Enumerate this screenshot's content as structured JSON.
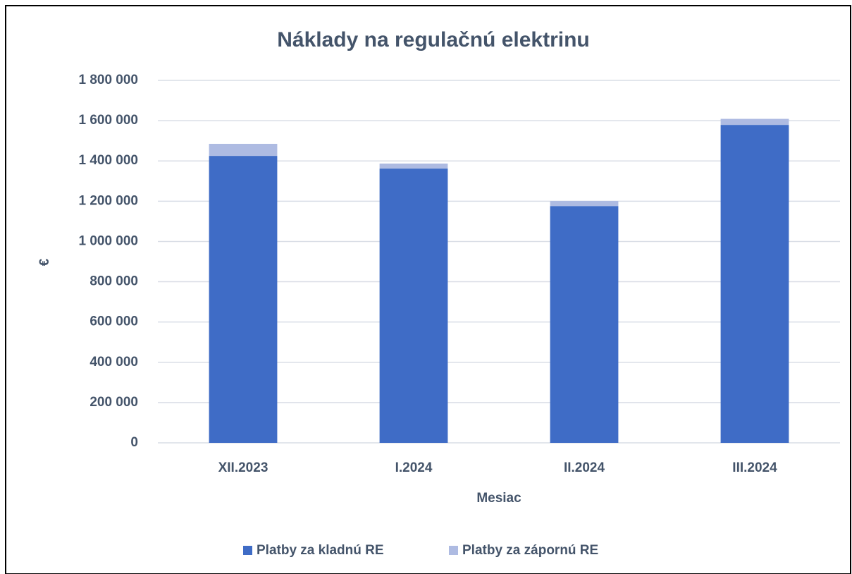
{
  "chart_data": {
    "type": "stacked_bar",
    "title": "Náklady na regulačnú elektrinu",
    "x_label": "Mesiac",
    "y_label": "€",
    "categories": [
      "XII.2023",
      "I.2024",
      "II.2024",
      "III.2024"
    ],
    "series": [
      {
        "name": "Platby za kladnú RE",
        "color": "#3f6cc6",
        "values": [
          1425000,
          1362000,
          1176000,
          1579000
        ]
      },
      {
        "name": "Platby za zápornú RE",
        "color": "#aebbe2",
        "values": [
          60000,
          25000,
          25000,
          30000
        ]
      }
    ],
    "ylim": [
      0,
      1800000
    ],
    "yticks": [
      0,
      {
        "value": 200000,
        "label": "200 000"
      },
      {
        "value": 400000,
        "label": "400 000"
      },
      {
        "value": 600000,
        "label": "600 000"
      },
      {
        "value": 800000,
        "label": "800 000"
      },
      {
        "value": 1000000,
        "label": "1 000 000"
      },
      {
        "value": 1200000,
        "label": "1 200 000"
      },
      {
        "value": 1400000,
        "label": "1 400 000"
      },
      {
        "value": 1600000,
        "label": "1 600 000"
      },
      {
        "value": 1800000,
        "label": "1 800 000"
      }
    ],
    "grid": true,
    "legend": "bottom"
  }
}
